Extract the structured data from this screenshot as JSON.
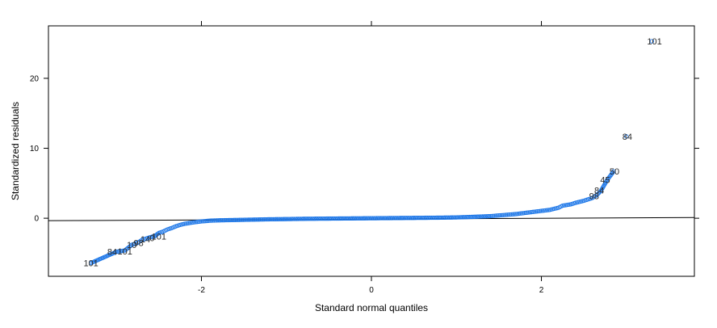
{
  "chart_data": {
    "type": "scatter",
    "xlabel": "Standard normal quantiles",
    "ylabel": "Standardized residuals",
    "xlim": [
      -3.8,
      3.8
    ],
    "ylim": [
      -8.3,
      27.5
    ],
    "x_ticks": [
      -2,
      0,
      2
    ],
    "x_tick_labels": [
      "-2",
      "0",
      "2"
    ],
    "y_ticks": [
      0,
      10,
      20
    ],
    "y_tick_labels": [
      "0",
      "10",
      "20"
    ],
    "grid": false,
    "reference_line": {
      "x": [
        -3.8,
        3.8
      ],
      "y": [
        -0.35,
        0.1
      ]
    },
    "point_color": "#1f78e8",
    "points": [
      {
        "x": -3.3,
        "y": -6.4
      },
      {
        "x": -3.0,
        "y": -4.8
      },
      {
        "x": -2.9,
        "y": -4.6
      },
      {
        "x": -2.82,
        "y": -3.8
      },
      {
        "x": -2.75,
        "y": -3.5
      },
      {
        "x": -2.7,
        "y": -3.1
      },
      {
        "x": -2.65,
        "y": -2.9
      },
      {
        "x": -2.6,
        "y": -2.7
      },
      {
        "x": -2.55,
        "y": -2.55
      },
      {
        "x": -2.5,
        "y": -2.1
      },
      {
        "x": -2.45,
        "y": -1.9
      },
      {
        "x": -2.4,
        "y": -1.6
      },
      {
        "x": -2.35,
        "y": -1.4
      },
      {
        "x": -2.3,
        "y": -1.15
      },
      {
        "x": -2.25,
        "y": -0.95
      },
      {
        "x": -2.2,
        "y": -0.8
      },
      {
        "x": -2.15,
        "y": -0.7
      },
      {
        "x": -2.1,
        "y": -0.6
      },
      {
        "x": -2.0,
        "y": -0.45
      },
      {
        "x": -1.9,
        "y": -0.35
      },
      {
        "x": -1.8,
        "y": -0.3
      },
      {
        "x": -1.6,
        "y": -0.25
      },
      {
        "x": -1.4,
        "y": -0.2
      },
      {
        "x": -1.2,
        "y": -0.15
      },
      {
        "x": -1.0,
        "y": -0.12
      },
      {
        "x": -0.8,
        "y": -0.08
      },
      {
        "x": -0.6,
        "y": -0.06
      },
      {
        "x": -0.4,
        "y": -0.04
      },
      {
        "x": -0.2,
        "y": -0.02
      },
      {
        "x": 0.0,
        "y": 0.0
      },
      {
        "x": 0.2,
        "y": 0.02
      },
      {
        "x": 0.4,
        "y": 0.04
      },
      {
        "x": 0.6,
        "y": 0.06
      },
      {
        "x": 0.8,
        "y": 0.08
      },
      {
        "x": 1.0,
        "y": 0.12
      },
      {
        "x": 1.2,
        "y": 0.2
      },
      {
        "x": 1.4,
        "y": 0.3
      },
      {
        "x": 1.5,
        "y": 0.4
      },
      {
        "x": 1.6,
        "y": 0.5
      },
      {
        "x": 1.7,
        "y": 0.6
      },
      {
        "x": 1.8,
        "y": 0.75
      },
      {
        "x": 1.9,
        "y": 0.9
      },
      {
        "x": 2.0,
        "y": 1.05
      },
      {
        "x": 2.1,
        "y": 1.2
      },
      {
        "x": 2.2,
        "y": 1.5
      },
      {
        "x": 2.25,
        "y": 1.8
      },
      {
        "x": 2.3,
        "y": 1.9
      },
      {
        "x": 2.35,
        "y": 2.0
      },
      {
        "x": 2.4,
        "y": 2.2
      },
      {
        "x": 2.45,
        "y": 2.35
      },
      {
        "x": 2.5,
        "y": 2.5
      },
      {
        "x": 2.55,
        "y": 2.7
      },
      {
        "x": 2.6,
        "y": 2.9
      },
      {
        "x": 2.65,
        "y": 3.3
      },
      {
        "x": 2.7,
        "y": 3.9
      },
      {
        "x": 2.77,
        "y": 5.4
      },
      {
        "x": 2.85,
        "y": 6.7
      },
      {
        "x": 3.0,
        "y": 11.7
      },
      {
        "x": 3.3,
        "y": 25.3
      }
    ],
    "annotations": [
      {
        "text": "101",
        "x": -3.3,
        "y": -6.4
      },
      {
        "text": "84",
        "x": -3.05,
        "y": -4.8
      },
      {
        "text": "101",
        "x": -2.9,
        "y": -4.7
      },
      {
        "text": "10",
        "x": -2.82,
        "y": -3.8
      },
      {
        "text": "98",
        "x": -2.74,
        "y": -3.5
      },
      {
        "text": "14",
        "x": -2.66,
        "y": -3.0
      },
      {
        "text": "0",
        "x": -2.58,
        "y": -2.8
      },
      {
        "text": "101",
        "x": -2.5,
        "y": -2.6
      },
      {
        "text": "98",
        "x": 2.62,
        "y": 3.2
      },
      {
        "text": "84",
        "x": 2.68,
        "y": 4.0
      },
      {
        "text": "45",
        "x": 2.75,
        "y": 5.5
      },
      {
        "text": "50",
        "x": 2.86,
        "y": 6.7
      },
      {
        "text": "84",
        "x": 3.01,
        "y": 11.7
      },
      {
        "text": "101",
        "x": 3.33,
        "y": 25.3
      }
    ]
  }
}
